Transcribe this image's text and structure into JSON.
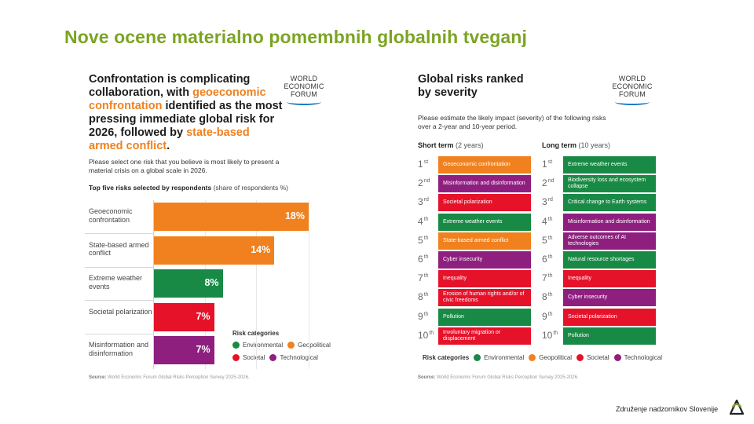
{
  "slide": {
    "title": "Nove ocene materialno pomembnih globalnih tveganj",
    "footer_org": "Združenje nadzornikov Slovenije"
  },
  "colors": {
    "title_green": "#7ba423",
    "environmental": "#198a45",
    "geopolitical": "#f0811e",
    "societal": "#e5122a",
    "technological": "#8e1f7f"
  },
  "left": {
    "heading_pre": "Confrontation is complicating collaboration, with ",
    "heading_hl1": "geoeconomic confrontation",
    "heading_mid": " identified as the most pressing immediate global risk for 2026, followed by ",
    "heading_hl2": "state-based armed conflict",
    "heading_end": ".",
    "logo_line1": "WORLD",
    "logo_line2": "ECONOMIC",
    "logo_line3": "FORUM",
    "question": "Please select one risk that you believe is most likely to present a material crisis on a global scale in 2026.",
    "subhead_bold": "Top five risks selected by respondents",
    "subhead_normal": " (share of respondents %)",
    "legend_title": "Risk categories",
    "legend": [
      "Environmental",
      "Geopolitical",
      "Societal",
      "Technological"
    ],
    "source": "World Economic Forum Global Risks Perception Survey 2025-2026.",
    "source_label": "Source:"
  },
  "chart_data": {
    "type": "bar",
    "orientation": "horizontal",
    "categories": [
      "Geoeconomic confrontation",
      "State-based armed conflict",
      "Extreme weather events",
      "Societal polarization",
      "Misinformation and disinformation"
    ],
    "values": [
      18,
      14,
      8,
      7,
      7
    ],
    "value_labels": [
      "18%",
      "14%",
      "8%",
      "7%",
      "7%"
    ],
    "category_colors": [
      "#f0811e",
      "#f0811e",
      "#198a45",
      "#e5122a",
      "#8e1f7f"
    ],
    "xlim": [
      0,
      18
    ],
    "grid": true,
    "legend_placement": "bottom-right"
  },
  "right": {
    "heading": "Global risks ranked by severity",
    "logo_line1": "WORLD",
    "logo_line2": "ECONOMIC",
    "logo_line3": "FORUM",
    "question": "Please estimate the likely impact (severity) of the following risks over a 2-year and 10-year period.",
    "short_term_bold": "Short term",
    "short_term_normal": " (2 years)",
    "long_term_bold": "Long term",
    "long_term_normal": " (10 years)",
    "ranks": [
      {
        "n": "1",
        "suffix": "st"
      },
      {
        "n": "2",
        "suffix": "nd"
      },
      {
        "n": "3",
        "suffix": "rd"
      },
      {
        "n": "4",
        "suffix": "th"
      },
      {
        "n": "5",
        "suffix": "th"
      },
      {
        "n": "6",
        "suffix": "th"
      },
      {
        "n": "7",
        "suffix": "th"
      },
      {
        "n": "8",
        "suffix": "th"
      },
      {
        "n": "9",
        "suffix": "th"
      },
      {
        "n": "10",
        "suffix": "th"
      }
    ],
    "short_term": [
      {
        "label": "Geoeconomic confrontation",
        "category": "geopolitical"
      },
      {
        "label": "Misinformation and disinformation",
        "category": "technological"
      },
      {
        "label": "Societal polarization",
        "category": "societal"
      },
      {
        "label": "Extreme weather events",
        "category": "environmental"
      },
      {
        "label": "State-based armed conflict",
        "category": "geopolitical"
      },
      {
        "label": "Cyber insecurity",
        "category": "technological"
      },
      {
        "label": "Inequality",
        "category": "societal"
      },
      {
        "label": "Erosion of human rights and/or of civic freedoms",
        "category": "societal"
      },
      {
        "label": "Pollution",
        "category": "environmental"
      },
      {
        "label": "Involuntary migration or displacement",
        "category": "societal"
      }
    ],
    "long_term": [
      {
        "label": "Extreme weather events",
        "category": "environmental"
      },
      {
        "label": "Biodiversity loss and ecosystem collapse",
        "category": "environmental"
      },
      {
        "label": "Critical change to Earth systems",
        "category": "environmental"
      },
      {
        "label": "Misinformation and disinformation",
        "category": "technological"
      },
      {
        "label": "Adverse outcomes of AI technologies",
        "category": "technological"
      },
      {
        "label": "Natural resource shortages",
        "category": "environmental"
      },
      {
        "label": "Inequality",
        "category": "societal"
      },
      {
        "label": "Cyber insecurity",
        "category": "technological"
      },
      {
        "label": "Societal polarization",
        "category": "societal"
      },
      {
        "label": "Pollution",
        "category": "environmental"
      }
    ],
    "legend_title": "Risk categories",
    "legend": [
      "Environmental",
      "Geopolitical",
      "Societal",
      "Technological"
    ],
    "source_label": "Source:",
    "source": "World Economic Forum Global Risks Perception Survey 2025-2026."
  }
}
